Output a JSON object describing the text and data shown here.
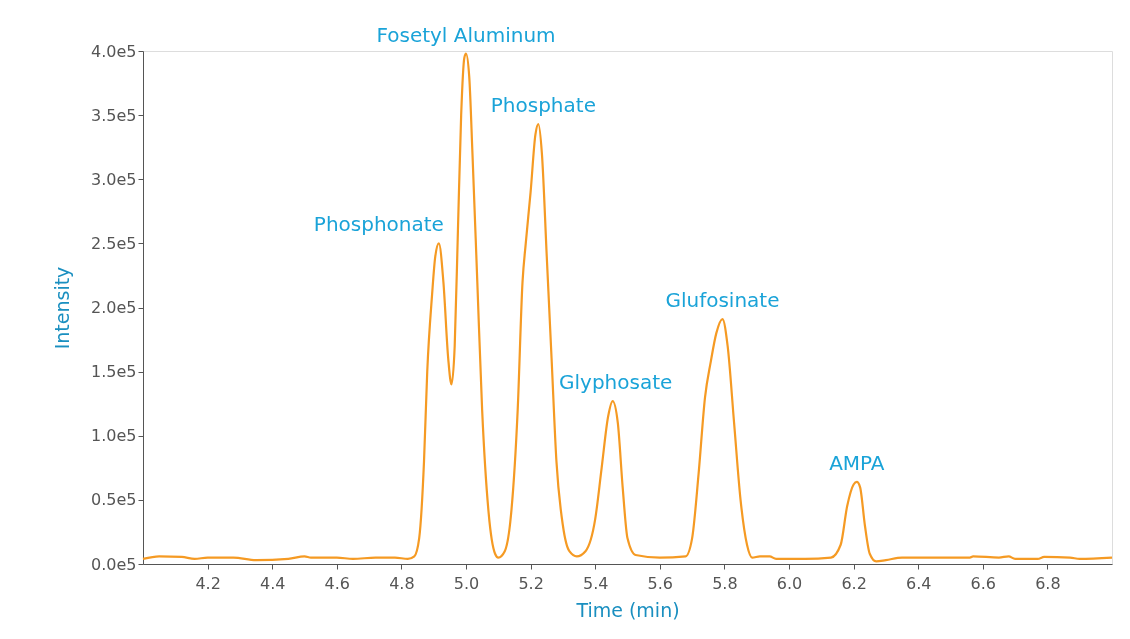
{
  "chart_data": {
    "type": "line",
    "xlabel": "Time (min)",
    "ylabel": "Intensity",
    "x": [
      4.0,
      4.05,
      4.12,
      4.16,
      4.2,
      4.28,
      4.35,
      4.45,
      4.5,
      4.52,
      4.6,
      4.65,
      4.72,
      4.78,
      4.82,
      4.84,
      4.855,
      4.87,
      4.88,
      4.895,
      4.905,
      4.916,
      4.93,
      4.945,
      4.955,
      4.965,
      4.975,
      4.985,
      4.995,
      5.0,
      5.01,
      5.02,
      5.035,
      5.05,
      5.07,
      5.09,
      5.1,
      5.12,
      5.14,
      5.16,
      5.175,
      5.185,
      5.2,
      5.215,
      5.224,
      5.235,
      5.25,
      5.265,
      5.28,
      5.3,
      5.32,
      5.343,
      5.37,
      5.4,
      5.42,
      5.44,
      5.454,
      5.47,
      5.485,
      5.5,
      5.525,
      5.6,
      5.68,
      5.7,
      5.72,
      5.74,
      5.758,
      5.775,
      5.794,
      5.81,
      5.83,
      5.85,
      5.87,
      5.886,
      5.91,
      5.94,
      5.96,
      6.05,
      6.13,
      6.16,
      6.18,
      6.2,
      6.21,
      6.22,
      6.235,
      6.25,
      6.27,
      6.3,
      6.35,
      6.56,
      6.57,
      6.65,
      6.68,
      6.7,
      6.77,
      6.79,
      6.87,
      6.9,
      7.0
    ],
    "series": [
      {
        "color": "#f59a23",
        "values": [
          4000,
          6000,
          5500,
          4000,
          5000,
          5000,
          3000,
          4000,
          6000,
          5000,
          5000,
          4000,
          5000,
          5000,
          4000,
          6000,
          20000,
          80000,
          150000,
          210000,
          240000,
          250000,
          220000,
          160000,
          140000,
          170000,
          260000,
          350000,
          395000,
          398000,
          380000,
          320000,
          220000,
          120000,
          40000,
          8000,
          5000,
          10000,
          40000,
          120000,
          220000,
          250000,
          290000,
          335000,
          343000,
          320000,
          240000,
          160000,
          80000,
          30000,
          10000,
          6000,
          10000,
          35000,
          75000,
          115000,
          127000,
          110000,
          60000,
          20000,
          7000,
          5000,
          6000,
          20000,
          70000,
          130000,
          158000,
          180000,
          191000,
          170000,
          110000,
          50000,
          15000,
          5000,
          6000,
          6000,
          4000,
          4000,
          5000,
          15000,
          45000,
          62000,
          64000,
          60000,
          30000,
          8000,
          2000,
          3000,
          5000,
          5000,
          6000,
          5000,
          6000,
          4000,
          4000,
          5500,
          5000,
          4000,
          5000
        ]
      }
    ],
    "xlim": [
      4.0,
      7.0
    ],
    "xticks": [
      {
        "value": 4.2,
        "label": "4.2"
      },
      {
        "value": 4.4,
        "label": "4.4"
      },
      {
        "value": 4.6,
        "label": "4.6"
      },
      {
        "value": 4.8,
        "label": "4.8"
      },
      {
        "value": 5.0,
        "label": "5.0"
      },
      {
        "value": 5.2,
        "label": "5.2"
      },
      {
        "value": 5.4,
        "label": "5.4"
      },
      {
        "value": 5.6,
        "label": "5.6"
      },
      {
        "value": 5.8,
        "label": "5.8"
      },
      {
        "value": 6.0,
        "label": "6.0"
      },
      {
        "value": 6.2,
        "label": "6.2"
      },
      {
        "value": 6.4,
        "label": "6.4"
      },
      {
        "value": 6.6,
        "label": "6.6"
      },
      {
        "value": 6.8,
        "label": "6.8"
      }
    ],
    "ylim": [
      0,
      400000
    ],
    "yticks": [
      {
        "value": 0,
        "label": "0.0e5"
      },
      {
        "value": 50000,
        "label": "0.5e5"
      },
      {
        "value": 100000,
        "label": "1.0e5"
      },
      {
        "value": 150000,
        "label": "1.5e5"
      },
      {
        "value": 200000,
        "label": "2.0e5"
      },
      {
        "value": 250000,
        "label": "2.5e5"
      },
      {
        "value": 300000,
        "label": "3.0e5"
      },
      {
        "value": 350000,
        "label": "3.5e5"
      },
      {
        "value": 400000,
        "label": "4.0e5"
      }
    ],
    "annotations": [
      {
        "text": "Phosphonate",
        "x": 4.916,
        "y": 250000
      },
      {
        "text": "Fosetyl Aluminum",
        "x": 5.0,
        "y": 398000
      },
      {
        "text": "Phosphate",
        "x": 5.224,
        "y": 343000
      },
      {
        "text": "Glyphosate",
        "x": 5.454,
        "y": 127000
      },
      {
        "text": "Glufosinate",
        "x": 5.794,
        "y": 191000
      },
      {
        "text": "AMPA",
        "x": 6.21,
        "y": 64000
      }
    ],
    "grid": false,
    "marker": "none",
    "line_style": "solid"
  }
}
